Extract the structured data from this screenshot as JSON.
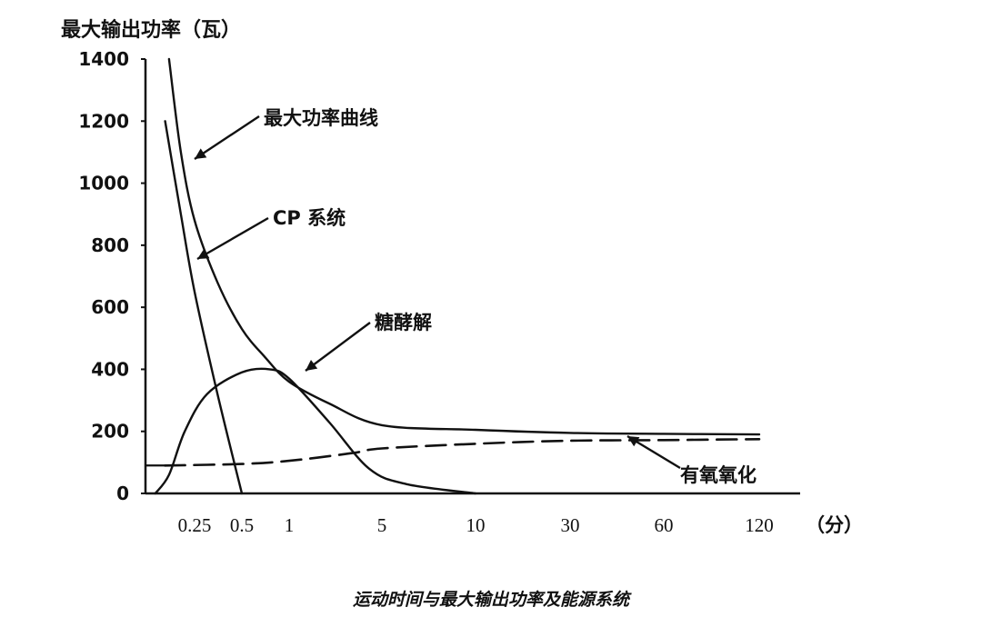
{
  "chart_data": {
    "type": "line",
    "ylabel": "最大输出功率（瓦）",
    "x_unit_label": "（分）",
    "caption": "运动时间与最大输出功率及能源系统",
    "x_scale": "categorical (non-linear time axis)",
    "x_ticks": [
      "0.25",
      "0.5",
      "1",
      "5",
      "10",
      "30",
      "60",
      "120"
    ],
    "ylim": [
      0,
      1400
    ],
    "y_ticks": [
      "0",
      "200",
      "400",
      "600",
      "800",
      "1000",
      "1200",
      "1400"
    ],
    "grid": false,
    "legend": "none (curves labeled by annotation arrows)",
    "series": [
      {
        "name": "最大功率曲线",
        "style": "solid",
        "x": [
          0.12,
          0.18,
          0.25,
          0.35,
          0.5,
          0.7,
          1,
          2,
          5,
          10,
          30,
          60,
          120
        ],
        "y": [
          1400,
          1100,
          880,
          680,
          530,
          440,
          360,
          290,
          220,
          205,
          195,
          192,
          190
        ]
      },
      {
        "name": "CP 系统",
        "style": "solid",
        "x": [
          0.1,
          0.18,
          0.25,
          0.35,
          0.5
        ],
        "y": [
          1200,
          900,
          650,
          320,
          0
        ]
      },
      {
        "name": "糖酵解",
        "style": "solid",
        "x": [
          0.05,
          0.12,
          0.2,
          0.3,
          0.5,
          0.75,
          1,
          2,
          4,
          6,
          10
        ],
        "y": [
          0,
          60,
          200,
          320,
          390,
          400,
          370,
          230,
          80,
          30,
          0
        ]
      },
      {
        "name": "有氧氧化",
        "style": "dashed",
        "x": [
          0.1,
          0.5,
          1,
          3,
          5,
          10,
          30,
          60,
          120
        ],
        "y": [
          90,
          95,
          105,
          130,
          145,
          160,
          170,
          172,
          175
        ]
      }
    ],
    "annotations": [
      {
        "text": "最大功率曲线",
        "target_series": 0
      },
      {
        "text": "CP 系统",
        "target_series": 1
      },
      {
        "text": "糖酵解",
        "target_series": 2
      },
      {
        "text": "有氧氧化",
        "target_series": 3
      }
    ]
  }
}
